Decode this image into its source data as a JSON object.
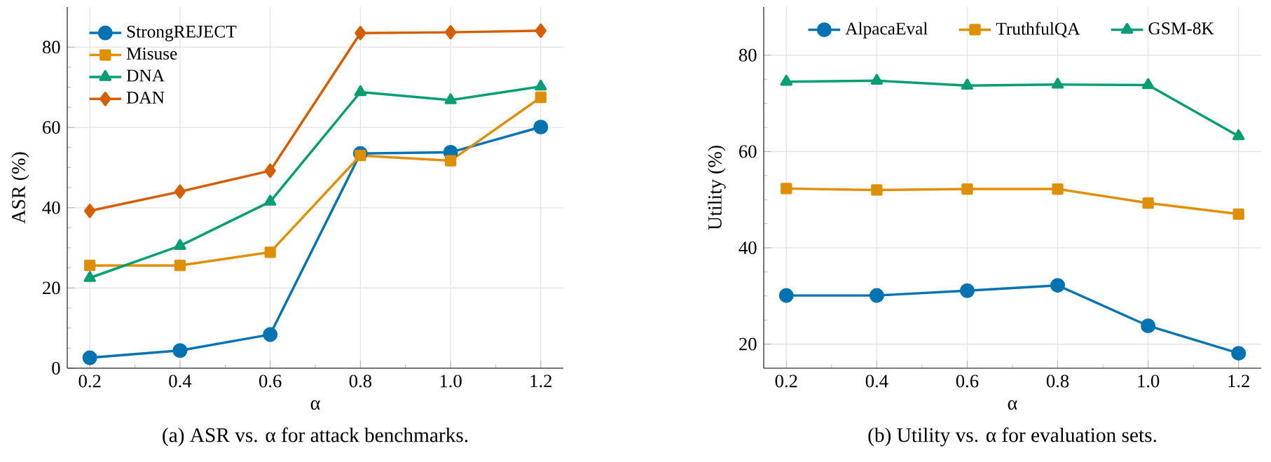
{
  "chart_data": [
    {
      "type": "line",
      "xlabel": "α",
      "ylabel": "ASR (%)",
      "x": [
        0.2,
        0.4,
        0.6,
        0.8,
        1.0,
        1.2
      ],
      "xlim": [
        0.15,
        1.25
      ],
      "ylim": [
        0,
        90
      ],
      "xticks": [
        0.2,
        0.4,
        0.6,
        0.8,
        {
          "value": 1,
          "label": "1.0"
        },
        1.2
      ],
      "yticks": [
        0,
        20,
        40,
        60,
        80
      ],
      "grid": true,
      "legend": "top left",
      "series": [
        {
          "name": "StrongREJECT",
          "color": "#0173b2",
          "marker": "circle",
          "values": [
            2.6,
            4.4,
            8.4,
            53.5,
            53.8,
            60.1
          ]
        },
        {
          "name": "Misuse",
          "color": "#de8f05",
          "marker": "square",
          "values": [
            25.6,
            25.6,
            28.9,
            53,
            51.7,
            67.5
          ]
        },
        {
          "name": "DNA",
          "color": "#029e73",
          "marker": "triangle",
          "values": [
            22.5,
            30.5,
            41.5,
            68.8,
            66.8,
            70.2
          ]
        },
        {
          "name": "DAN",
          "color": "#d55e00",
          "marker": "diamond",
          "values": [
            39.2,
            44,
            49.2,
            83.5,
            83.7,
            84.1
          ]
        }
      ],
      "annotations": [
        "(a) ASR vs. α for attack benchmarks."
      ]
    },
    {
      "type": "line",
      "xlabel": "α",
      "ylabel": "Utility (%)",
      "x": [
        0.2,
        0.4,
        0.6,
        0.8,
        1.0,
        1.2
      ],
      "xlim": [
        0.15,
        1.25
      ],
      "ylim": [
        15,
        90
      ],
      "xticks": [
        0.2,
        0.4,
        0.6,
        0.8,
        {
          "value": 1,
          "label": "1.0"
        },
        1.2
      ],
      "yticks": [
        20,
        40,
        60,
        80
      ],
      "grid": true,
      "legend": "top",
      "series": [
        {
          "name": "AlpacaEval",
          "color": "#0173b2",
          "marker": "circle",
          "values": [
            30.1,
            30.1,
            31.1,
            32.2,
            23.8,
            18.1
          ]
        },
        {
          "name": "TruthfulQA",
          "color": "#de8f05",
          "marker": "square",
          "values": [
            52.3,
            52.0,
            52.2,
            52.2,
            49.3,
            47.0
          ]
        },
        {
          "name": "GSM-8K",
          "color": "#029e73",
          "marker": "triangle",
          "values": [
            74.5,
            74.7,
            73.7,
            73.9,
            73.8,
            63.2
          ]
        }
      ],
      "annotations": [
        "(b) Utility vs. α for evaluation sets."
      ]
    }
  ]
}
